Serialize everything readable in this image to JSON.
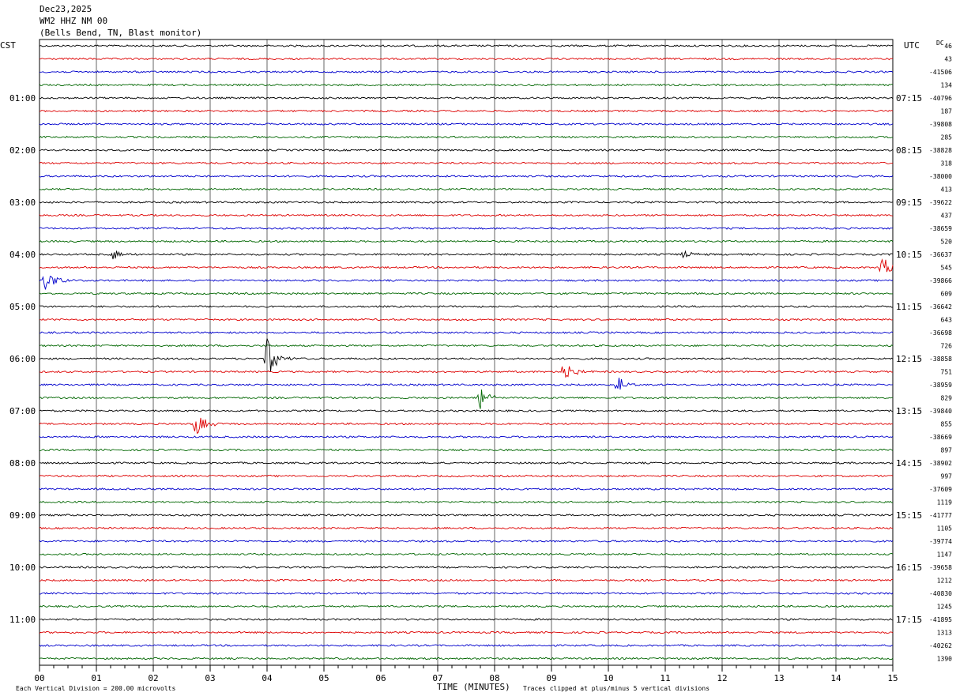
{
  "header": {
    "line1": "Dec23,2025",
    "line2": "WM2 HHZ NM 00",
    "line3": "(Bells Bend, TN, Blast monitor)"
  },
  "left_tz": "CST",
  "right_tz": "UTC",
  "dc_label": "DC",
  "footer": {
    "scale_note": "Each Vertical Division =  200.00 microvolts",
    "xlabel": "TIME (MINUTES)",
    "clip_note": "Traces clipped at plus/minus 5 vertical divisions"
  },
  "colors": {
    "cycle": [
      "#000000",
      "#dd0000",
      "#0000cc",
      "#006600"
    ],
    "grid": "#000000"
  },
  "chart_data": {
    "type": "line",
    "title": "Dec23,2025 WM2 HHZ NM 00 (Bells Bend, TN, Blast monitor)",
    "xlabel": "TIME (MINUTES)",
    "xlim": [
      0,
      15
    ],
    "x_ticks": [
      "00",
      "01",
      "02",
      "03",
      "04",
      "05",
      "06",
      "07",
      "08",
      "09",
      "10",
      "11",
      "12",
      "13",
      "14",
      "15"
    ],
    "trace_count": 48,
    "left_hour_labels": [
      "01:00",
      "02:00",
      "03:00",
      "04:00",
      "05:00",
      "06:00",
      "07:00",
      "08:00",
      "09:00",
      "10:00",
      "11:00"
    ],
    "right_hour_labels": [
      "07:15",
      "08:15",
      "09:15",
      "10:15",
      "11:15",
      "12:15",
      "13:15",
      "14:15",
      "15:15",
      "16:15",
      "17:15"
    ],
    "dc_values": [
      "46",
      "43",
      "-41506",
      "134",
      "-40796",
      "187",
      "-39808",
      "285",
      "-38828",
      "318",
      "-38000",
      "413",
      "-39622",
      "437",
      "-38659",
      "520",
      "-36637",
      "545",
      "-39866",
      "609",
      "-36642",
      "643",
      "-36698",
      "726",
      "-38858",
      "751",
      "-38959",
      "829",
      "-39840",
      "855",
      "-38669",
      "897",
      "-38902",
      "997",
      "-37609",
      "1119",
      "-41777",
      "1105",
      "-39774",
      "1147",
      "-39658",
      "1212",
      "-40830",
      "1245",
      "-41895",
      "1313",
      "-40262",
      "1390"
    ],
    "events": [
      {
        "trace": 16,
        "minute": 1.3,
        "amplitude": 0.5
      },
      {
        "trace": 16,
        "minute": 11.3,
        "amplitude": 0.3
      },
      {
        "trace": 17,
        "minute": 14.8,
        "amplitude": 1.0
      },
      {
        "trace": 18,
        "minute": 0.1,
        "amplitude": 1.1
      },
      {
        "trace": 24,
        "minute": 4.0,
        "amplitude": 1.6
      },
      {
        "trace": 25,
        "minute": 9.2,
        "amplitude": 1.0
      },
      {
        "trace": 26,
        "minute": 10.15,
        "amplitude": 0.9
      },
      {
        "trace": 27,
        "minute": 7.75,
        "amplitude": 0.9
      },
      {
        "trace": 29,
        "minute": 2.75,
        "amplitude": 1.0
      }
    ]
  }
}
